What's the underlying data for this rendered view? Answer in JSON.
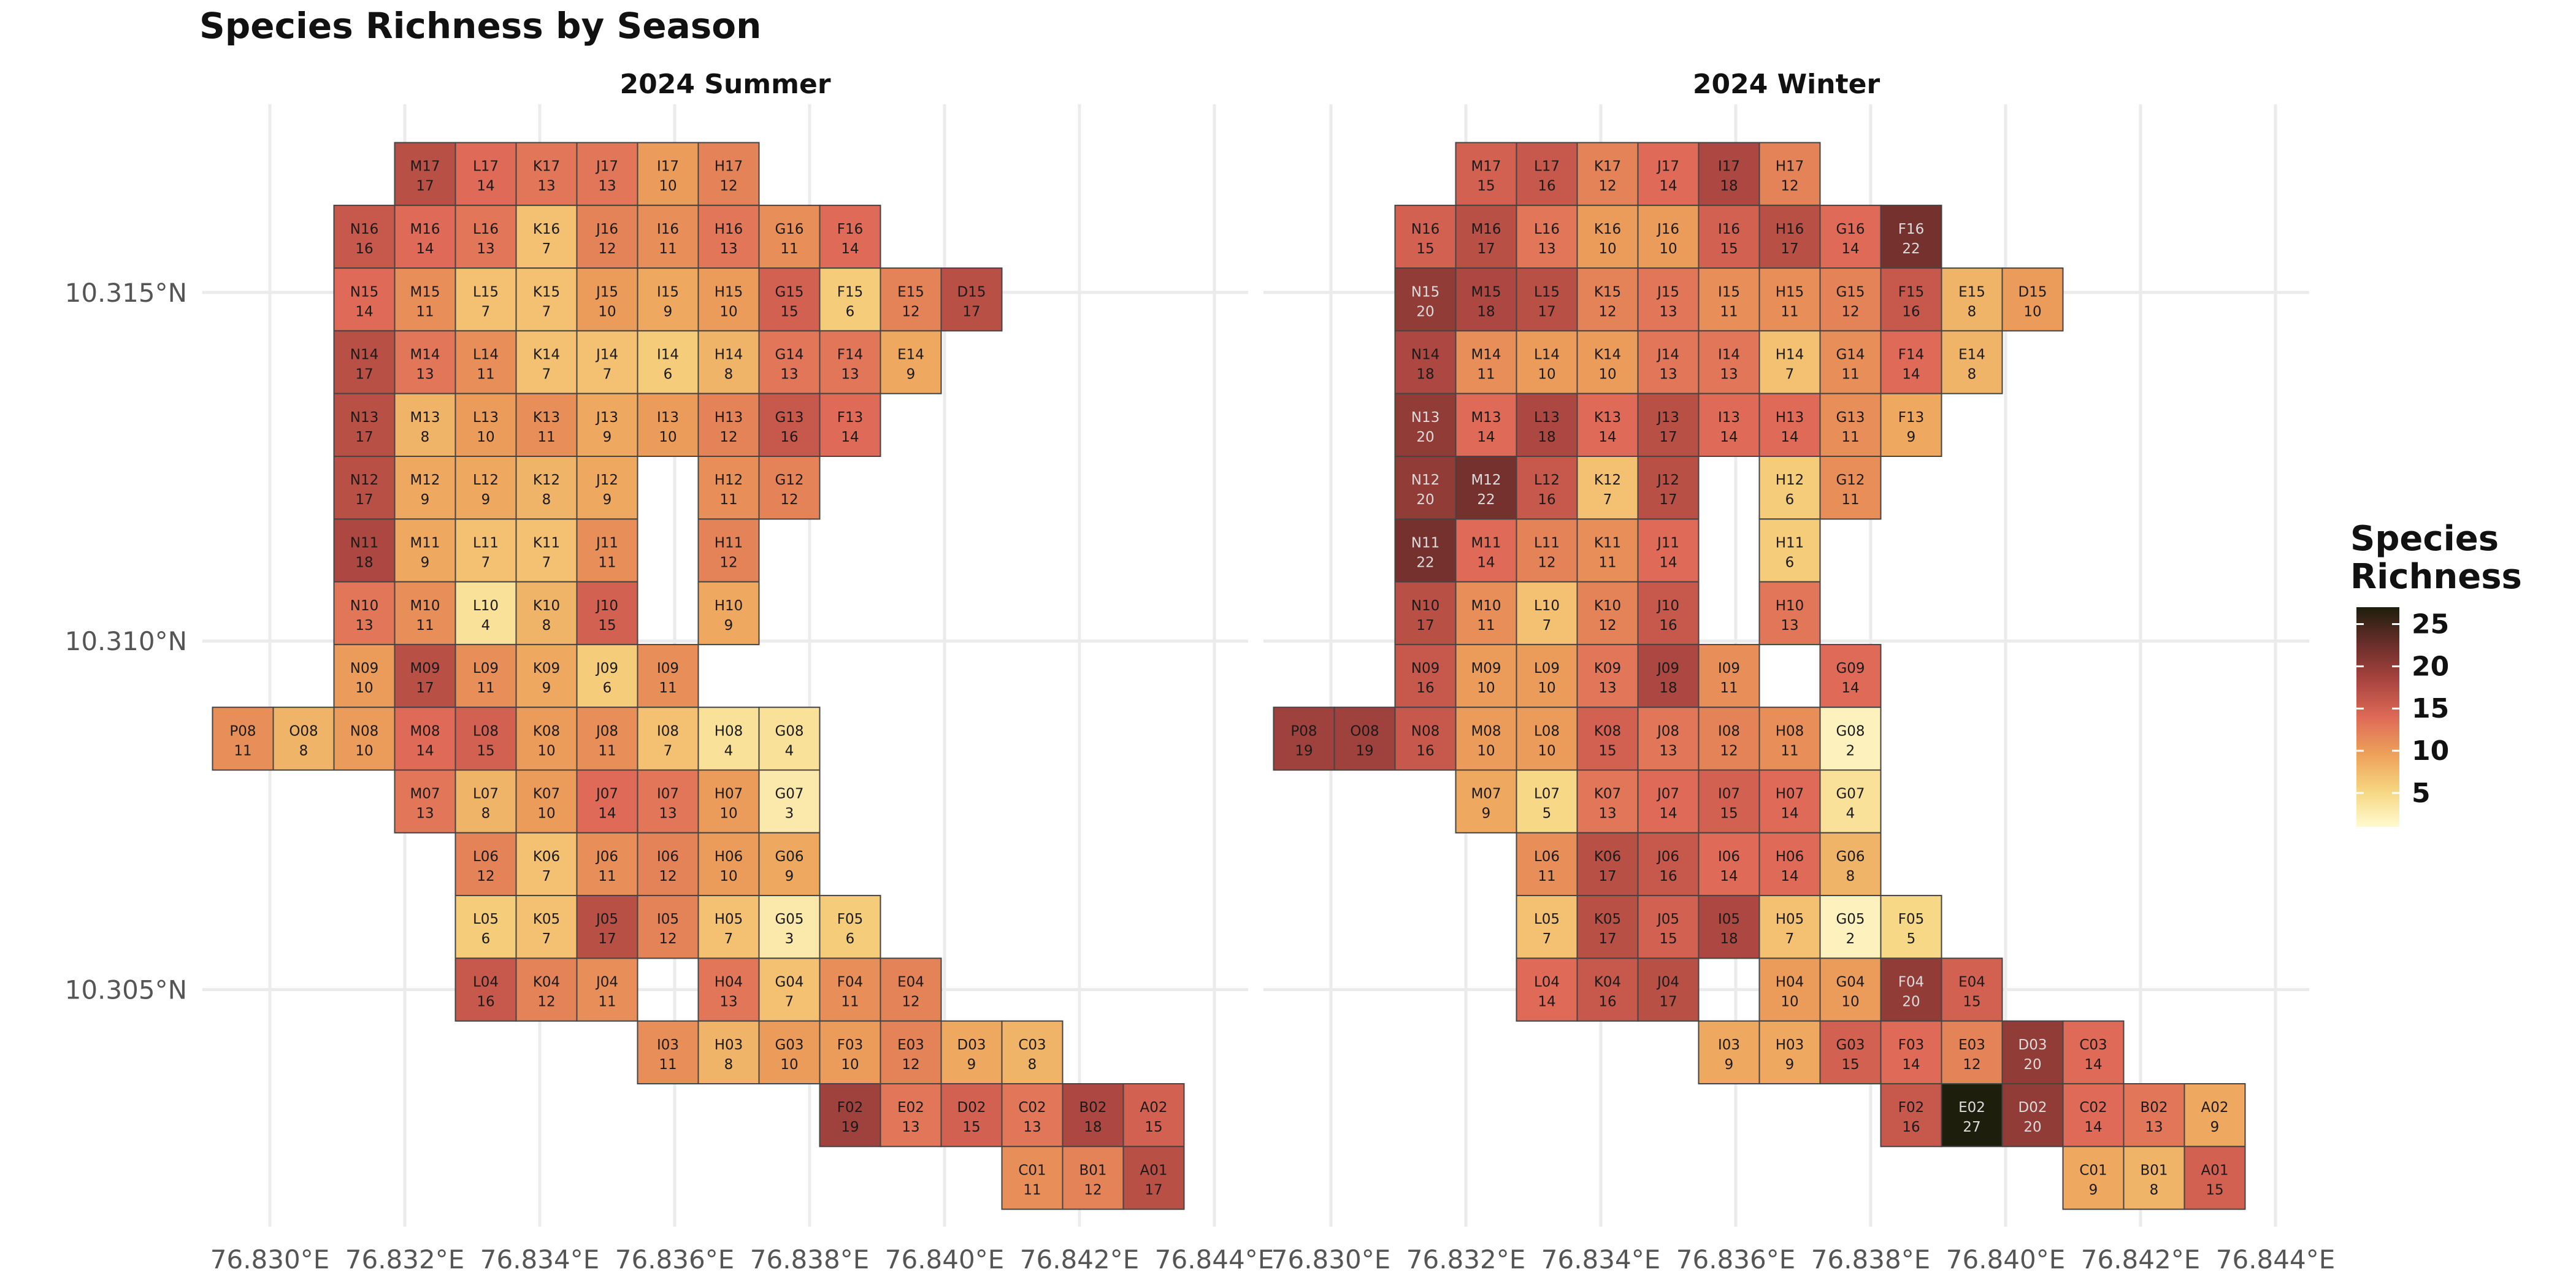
{
  "chart_data": {
    "type": "heatmap",
    "title": "Species Richness by Season",
    "legend": {
      "title_lines": [
        "Species",
        "Richness"
      ],
      "ticks": [
        5,
        10,
        15,
        20,
        25
      ],
      "range": [
        1,
        27
      ],
      "position": "right"
    },
    "color_scale": [
      "#fffbd0",
      "#f6d580",
      "#eda05a",
      "#de6a57",
      "#a9443f",
      "#6a2e2a",
      "#1d1e0c"
    ],
    "x_axis": {
      "ticks": [
        76.83,
        76.832,
        76.834,
        76.836,
        76.838,
        76.84,
        76.842,
        76.844
      ],
      "tick_labels": [
        "76.830°E",
        "76.832°E",
        "76.834°E",
        "76.836°E",
        "76.838°E",
        "76.840°E",
        "76.842°E",
        "76.844°E"
      ]
    },
    "y_axis": {
      "ticks": [
        10.305,
        10.31,
        10.315
      ],
      "tick_labels": [
        "10.305°N",
        "10.310°N",
        "10.315°N"
      ]
    },
    "grid": true,
    "columns": {
      "P": 76.8296,
      "O": 76.8305,
      "N": 76.8314,
      "M": 76.8323,
      "L": 76.8332,
      "K": 76.8341,
      "J": 76.835,
      "I": 76.8359,
      "H": 76.8368,
      "G": 76.8377,
      "F": 76.8386,
      "E": 76.8395,
      "D": 76.8404,
      "C": 76.8413,
      "B": 76.8422,
      "A": 76.8431
    },
    "rows": {
      "01": 10.3023,
      "02": 10.3032,
      "03": 10.3041,
      "04": 10.305,
      "05": 10.3059,
      "06": 10.3068,
      "07": 10.3077,
      "08": 10.3086,
      "09": 10.3095,
      "10": 10.3104,
      "11": 10.3113,
      "12": 10.3122,
      "13": 10.3131,
      "14": 10.314,
      "15": 10.3149,
      "16": 10.3158,
      "17": 10.3167
    },
    "panels": [
      {
        "name": "2024 Summer",
        "cells": [
          [
            "M17",
            17
          ],
          [
            "L17",
            14
          ],
          [
            "K17",
            13
          ],
          [
            "J17",
            13
          ],
          [
            "I17",
            10
          ],
          [
            "H17",
            12
          ],
          [
            "N16",
            16
          ],
          [
            "M16",
            14
          ],
          [
            "L16",
            13
          ],
          [
            "K16",
            7
          ],
          [
            "J16",
            12
          ],
          [
            "I16",
            11
          ],
          [
            "H16",
            13
          ],
          [
            "G16",
            11
          ],
          [
            "F16",
            14
          ],
          [
            "N15",
            14
          ],
          [
            "M15",
            11
          ],
          [
            "L15",
            7
          ],
          [
            "K15",
            7
          ],
          [
            "J15",
            10
          ],
          [
            "I15",
            9
          ],
          [
            "H15",
            10
          ],
          [
            "G15",
            15
          ],
          [
            "F15",
            6
          ],
          [
            "E15",
            12
          ],
          [
            "D15",
            17
          ],
          [
            "N14",
            17
          ],
          [
            "M14",
            13
          ],
          [
            "L14",
            11
          ],
          [
            "K14",
            7
          ],
          [
            "J14",
            7
          ],
          [
            "I14",
            6
          ],
          [
            "H14",
            8
          ],
          [
            "G14",
            13
          ],
          [
            "F14",
            13
          ],
          [
            "E14",
            9
          ],
          [
            "N13",
            17
          ],
          [
            "M13",
            8
          ],
          [
            "L13",
            10
          ],
          [
            "K13",
            11
          ],
          [
            "J13",
            9
          ],
          [
            "I13",
            10
          ],
          [
            "H13",
            12
          ],
          [
            "G13",
            16
          ],
          [
            "F13",
            14
          ],
          [
            "N12",
            17
          ],
          [
            "M12",
            9
          ],
          [
            "L12",
            9
          ],
          [
            "K12",
            8
          ],
          [
            "J12",
            9
          ],
          [
            "H12",
            11
          ],
          [
            "G12",
            12
          ],
          [
            "N11",
            18
          ],
          [
            "M11",
            9
          ],
          [
            "L11",
            7
          ],
          [
            "K11",
            7
          ],
          [
            "J11",
            11
          ],
          [
            "H11",
            12
          ],
          [
            "N10",
            13
          ],
          [
            "M10",
            11
          ],
          [
            "L10",
            4
          ],
          [
            "K10",
            8
          ],
          [
            "J10",
            15
          ],
          [
            "H10",
            9
          ],
          [
            "N09",
            10
          ],
          [
            "M09",
            17
          ],
          [
            "L09",
            11
          ],
          [
            "K09",
            9
          ],
          [
            "J09",
            6
          ],
          [
            "I09",
            11
          ],
          [
            "P08",
            11
          ],
          [
            "O08",
            8
          ],
          [
            "N08",
            10
          ],
          [
            "M08",
            14
          ],
          [
            "L08",
            15
          ],
          [
            "K08",
            10
          ],
          [
            "J08",
            11
          ],
          [
            "I08",
            7
          ],
          [
            "H08",
            4
          ],
          [
            "G08",
            4
          ],
          [
            "M07",
            13
          ],
          [
            "L07",
            8
          ],
          [
            "K07",
            10
          ],
          [
            "J07",
            14
          ],
          [
            "I07",
            13
          ],
          [
            "H07",
            10
          ],
          [
            "G07",
            3
          ],
          [
            "L06",
            12
          ],
          [
            "K06",
            7
          ],
          [
            "J06",
            11
          ],
          [
            "I06",
            12
          ],
          [
            "H06",
            10
          ],
          [
            "G06",
            9
          ],
          [
            "L05",
            6
          ],
          [
            "K05",
            7
          ],
          [
            "J05",
            17
          ],
          [
            "I05",
            12
          ],
          [
            "H05",
            7
          ],
          [
            "G05",
            3
          ],
          [
            "F05",
            6
          ],
          [
            "L04",
            16
          ],
          [
            "K04",
            12
          ],
          [
            "J04",
            11
          ],
          [
            "H04",
            13
          ],
          [
            "G04",
            7
          ],
          [
            "F04",
            11
          ],
          [
            "E04",
            12
          ],
          [
            "I03",
            11
          ],
          [
            "H03",
            8
          ],
          [
            "G03",
            10
          ],
          [
            "F03",
            10
          ],
          [
            "E03",
            12
          ],
          [
            "D03",
            9
          ],
          [
            "C03",
            8
          ],
          [
            "F02",
            19
          ],
          [
            "E02",
            13
          ],
          [
            "D02",
            15
          ],
          [
            "C02",
            13
          ],
          [
            "B02",
            18
          ],
          [
            "A02",
            15
          ],
          [
            "C01",
            11
          ],
          [
            "B01",
            12
          ],
          [
            "A01",
            17
          ]
        ]
      },
      {
        "name": "2024 Winter",
        "cells": [
          [
            "M17",
            15
          ],
          [
            "L17",
            16
          ],
          [
            "K17",
            12
          ],
          [
            "J17",
            14
          ],
          [
            "I17",
            18
          ],
          [
            "H17",
            12
          ],
          [
            "N16",
            15
          ],
          [
            "M16",
            17
          ],
          [
            "L16",
            13
          ],
          [
            "K16",
            10
          ],
          [
            "J16",
            10
          ],
          [
            "I16",
            15
          ],
          [
            "H16",
            17
          ],
          [
            "G16",
            14
          ],
          [
            "F16",
            22
          ],
          [
            "N15",
            20
          ],
          [
            "M15",
            18
          ],
          [
            "L15",
            17
          ],
          [
            "K15",
            12
          ],
          [
            "J15",
            13
          ],
          [
            "I15",
            11
          ],
          [
            "H15",
            11
          ],
          [
            "G15",
            12
          ],
          [
            "F15",
            16
          ],
          [
            "E15",
            8
          ],
          [
            "D15",
            10
          ],
          [
            "N14",
            18
          ],
          [
            "M14",
            11
          ],
          [
            "L14",
            10
          ],
          [
            "K14",
            10
          ],
          [
            "J14",
            13
          ],
          [
            "I14",
            13
          ],
          [
            "H14",
            7
          ],
          [
            "G14",
            11
          ],
          [
            "F14",
            14
          ],
          [
            "E14",
            8
          ],
          [
            "N13",
            20
          ],
          [
            "M13",
            14
          ],
          [
            "L13",
            18
          ],
          [
            "K13",
            14
          ],
          [
            "J13",
            17
          ],
          [
            "I13",
            14
          ],
          [
            "H13",
            14
          ],
          [
            "G13",
            11
          ],
          [
            "F13",
            9
          ],
          [
            "N12",
            20
          ],
          [
            "M12",
            22
          ],
          [
            "L12",
            16
          ],
          [
            "K12",
            7
          ],
          [
            "J12",
            17
          ],
          [
            "H12",
            6
          ],
          [
            "G12",
            11
          ],
          [
            "N11",
            22
          ],
          [
            "M11",
            14
          ],
          [
            "L11",
            12
          ],
          [
            "K11",
            11
          ],
          [
            "J11",
            14
          ],
          [
            "H11",
            6
          ],
          [
            "N10",
            17
          ],
          [
            "M10",
            11
          ],
          [
            "L10",
            7
          ],
          [
            "K10",
            12
          ],
          [
            "J10",
            16
          ],
          [
            "H10",
            13
          ],
          [
            "N09",
            16
          ],
          [
            "M09",
            10
          ],
          [
            "L09",
            10
          ],
          [
            "K09",
            13
          ],
          [
            "J09",
            18
          ],
          [
            "I09",
            11
          ],
          [
            "G09",
            14
          ],
          [
            "P08",
            19
          ],
          [
            "O08",
            19
          ],
          [
            "N08",
            16
          ],
          [
            "M08",
            10
          ],
          [
            "L08",
            10
          ],
          [
            "K08",
            15
          ],
          [
            "J08",
            13
          ],
          [
            "I08",
            12
          ],
          [
            "H08",
            11
          ],
          [
            "G08",
            2
          ],
          [
            "M07",
            9
          ],
          [
            "L07",
            5
          ],
          [
            "K07",
            13
          ],
          [
            "J07",
            14
          ],
          [
            "I07",
            15
          ],
          [
            "H07",
            14
          ],
          [
            "G07",
            4
          ],
          [
            "L06",
            11
          ],
          [
            "K06",
            17
          ],
          [
            "J06",
            16
          ],
          [
            "I06",
            14
          ],
          [
            "H06",
            14
          ],
          [
            "G06",
            8
          ],
          [
            "L05",
            7
          ],
          [
            "K05",
            17
          ],
          [
            "J05",
            15
          ],
          [
            "I05",
            18
          ],
          [
            "H05",
            7
          ],
          [
            "G05",
            2
          ],
          [
            "F05",
            5
          ],
          [
            "L04",
            14
          ],
          [
            "K04",
            16
          ],
          [
            "J04",
            17
          ],
          [
            "H04",
            10
          ],
          [
            "G04",
            10
          ],
          [
            "F04",
            20
          ],
          [
            "E04",
            15
          ],
          [
            "I03",
            9
          ],
          [
            "H03",
            9
          ],
          [
            "G03",
            15
          ],
          [
            "F03",
            14
          ],
          [
            "E03",
            12
          ],
          [
            "D03",
            20
          ],
          [
            "C03",
            14
          ],
          [
            "F02",
            16
          ],
          [
            "E02",
            27
          ],
          [
            "D02",
            20
          ],
          [
            "C02",
            14
          ],
          [
            "B02",
            13
          ],
          [
            "A02",
            9
          ],
          [
            "C01",
            9
          ],
          [
            "B01",
            8
          ],
          [
            "A01",
            15
          ]
        ]
      }
    ]
  }
}
